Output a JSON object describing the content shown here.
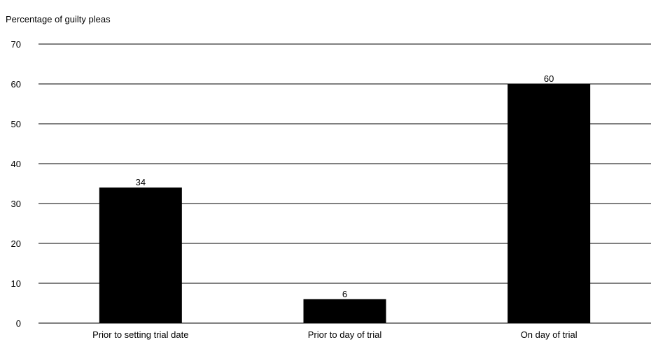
{
  "chart_data": {
    "type": "bar",
    "title": "",
    "ylabel": "Percentage of guilty pleas",
    "xlabel": "",
    "categories": [
      "Prior to setting trial date",
      "Prior to day of trial",
      "On day of trial"
    ],
    "values": [
      34,
      6,
      60
    ],
    "ylim": [
      0,
      70
    ],
    "yticks": [
      0,
      10,
      20,
      30,
      40,
      50,
      60,
      70
    ],
    "grid": true,
    "legend": "none",
    "bar_color": "#000000"
  }
}
